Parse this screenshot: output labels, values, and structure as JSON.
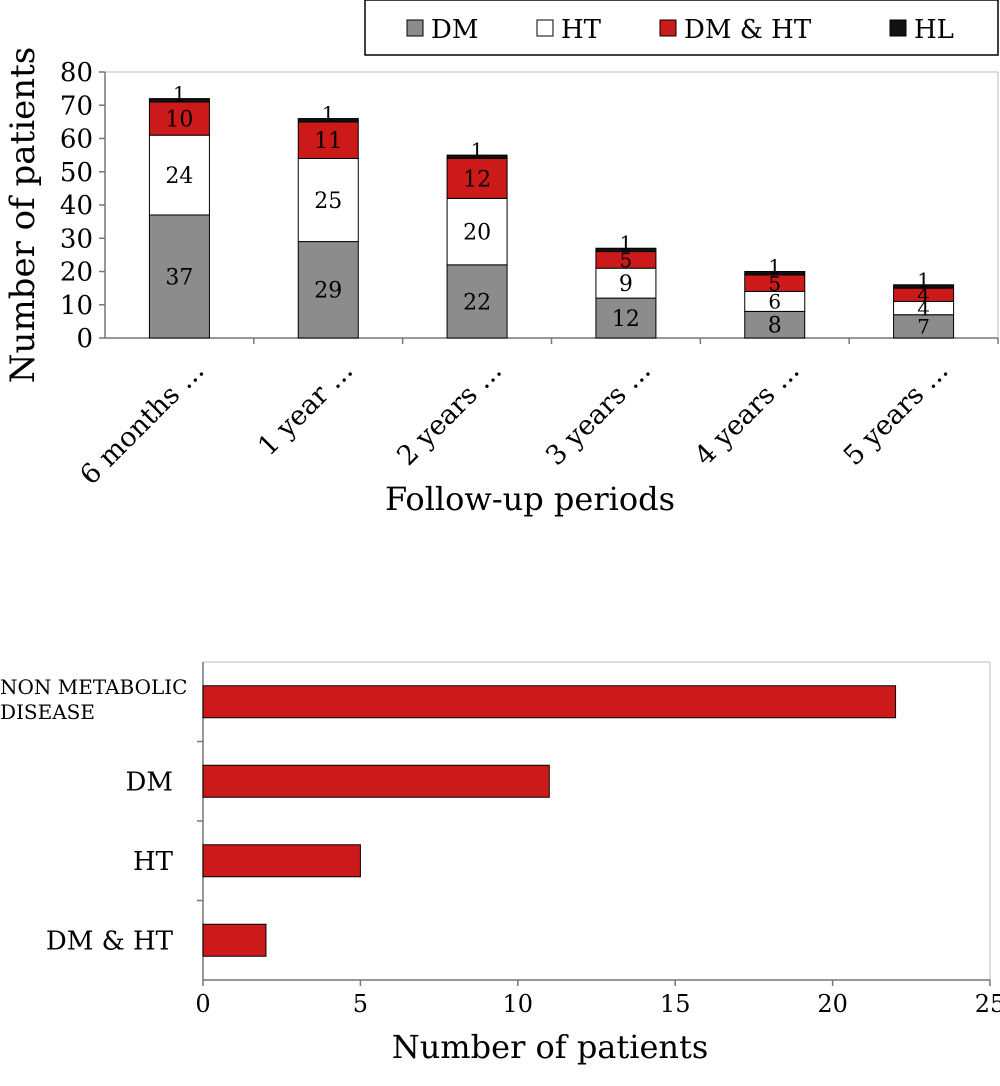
{
  "chart_data": [
    {
      "type": "bar",
      "stacked": true,
      "orientation": "vertical",
      "title": "",
      "xlabel": "Follow-up periods",
      "ylabel": "Number of patients",
      "categories": [
        "6 months ...",
        "1 year ...",
        "2 years ...",
        "3 years ...",
        "4 years ...",
        "5 years ..."
      ],
      "series": [
        {
          "name": "DM",
          "color": "#8c8c8c",
          "values": [
            37,
            29,
            22,
            12,
            8,
            7
          ],
          "labels": [
            "37",
            "29",
            "22",
            "12",
            "8",
            "7"
          ]
        },
        {
          "name": "HT",
          "color": "#ffffff",
          "values": [
            24,
            25,
            20,
            9,
            6,
            4
          ],
          "labels": [
            "24",
            "25",
            "20",
            "9",
            "6",
            "4"
          ]
        },
        {
          "name": "DM & HT",
          "color": "#cc1a1a",
          "values": [
            10,
            11,
            12,
            5,
            5,
            4
          ],
          "labels": [
            "10",
            "11",
            "12",
            "5",
            "5",
            "4"
          ]
        },
        {
          "name": "HL",
          "color": "#111111",
          "values": [
            1,
            1,
            1,
            1,
            1,
            1
          ],
          "labels": [
            "1",
            "1",
            "1",
            "1",
            "1",
            "1"
          ]
        }
      ],
      "ylim": [
        0,
        80
      ],
      "yticks": [
        "0",
        "10",
        "20",
        "30",
        "40",
        "50",
        "60",
        "70",
        "80"
      ],
      "grid": false,
      "legend": "top-right"
    },
    {
      "type": "bar",
      "orientation": "horizontal",
      "title": "",
      "xlabel": "Number of patients",
      "ylabel": "",
      "categories": [
        [
          "NON METABOLIC",
          "DISEASE"
        ],
        [
          "DM"
        ],
        [
          "HT"
        ],
        [
          "DM & HT"
        ]
      ],
      "values": [
        22,
        11,
        5,
        2
      ],
      "color": "#cc1a1a",
      "xlim": [
        0,
        25
      ],
      "xticks": [
        "0",
        "5",
        "10",
        "15",
        "20",
        "25"
      ],
      "grid": false
    }
  ]
}
